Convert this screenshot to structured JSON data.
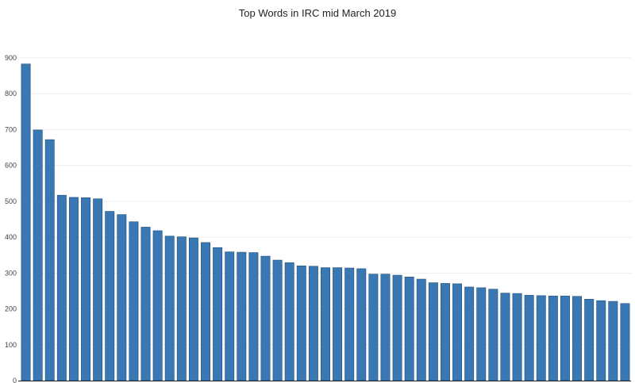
{
  "chart_data": {
    "type": "bar",
    "title": "Top Words in IRC mid March 2019",
    "xlabel": "",
    "ylabel": "",
    "ylim": [
      0,
      900
    ],
    "yticks": [
      0,
      100,
      200,
      300,
      400,
      500,
      600,
      700,
      800,
      900
    ],
    "grid": true,
    "bar_color": "#3a78b4",
    "bar_edge_color": "#1f4e79",
    "values": [
      883,
      699,
      672,
      517,
      511,
      510,
      507,
      472,
      463,
      443,
      428,
      418,
      403,
      401,
      398,
      385,
      371,
      359,
      358,
      357,
      347,
      336,
      329,
      320,
      319,
      315,
      315,
      314,
      312,
      297,
      297,
      294,
      289,
      283,
      273,
      271,
      270,
      261,
      259,
      255,
      244,
      243,
      238,
      237,
      236,
      236,
      235,
      227,
      223,
      221,
      215
    ]
  }
}
